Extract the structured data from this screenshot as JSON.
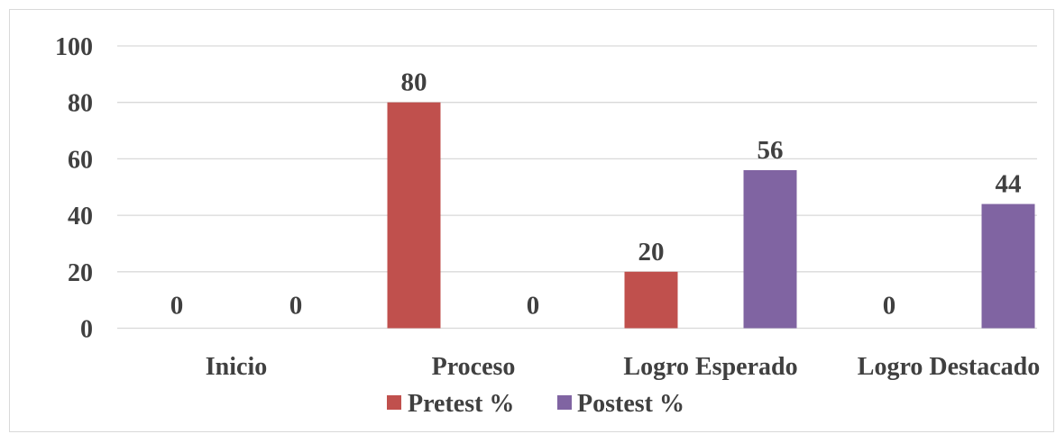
{
  "chart_data": {
    "type": "bar",
    "categories": [
      "Inicio",
      "Proceso",
      "Logro Esperado",
      "Logro Destacado"
    ],
    "series": [
      {
        "name": "Pretest %",
        "values": [
          0,
          80,
          20,
          0
        ],
        "color": "#c0504d"
      },
      {
        "name": "Postest %",
        "values": [
          0,
          0,
          56,
          44
        ],
        "color": "#8064a2"
      }
    ],
    "ylim": [
      0,
      100
    ],
    "yticks": [
      "0",
      "20",
      "40",
      "60",
      "80",
      "100"
    ],
    "grid": true,
    "legend": "bottom",
    "data_labels": true
  }
}
